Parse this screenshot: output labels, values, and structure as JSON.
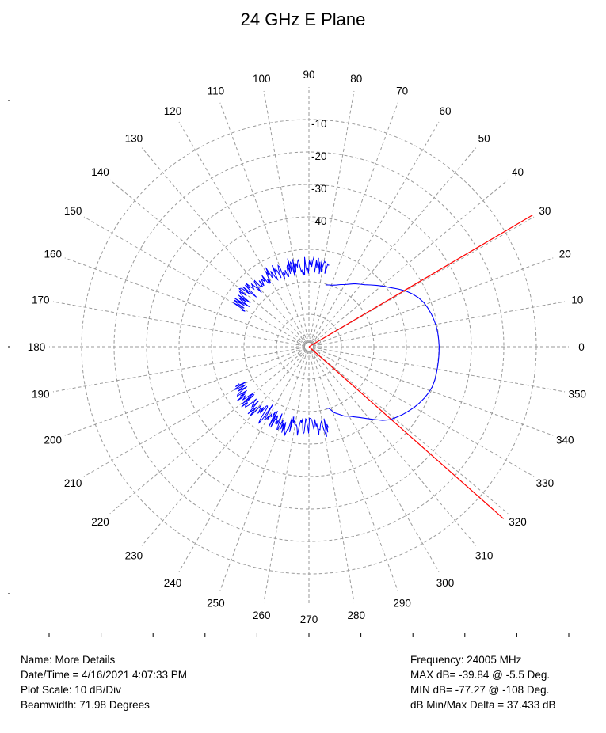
{
  "chart_data": {
    "type": "polar-line",
    "title": "24 GHz E Plane",
    "radial_axis": {
      "unit": "dB",
      "ticks": [
        -10,
        -20,
        -30,
        -40
      ],
      "tick_labels": [
        "-10",
        "-20",
        "-30",
        "-40"
      ],
      "range": [
        -80,
        0
      ],
      "rings": [
        -10,
        -20,
        -30,
        -40,
        -50,
        -60,
        -70
      ]
    },
    "angular_axis": {
      "unit": "deg",
      "ticks": [
        0,
        10,
        20,
        30,
        40,
        50,
        60,
        70,
        80,
        90,
        100,
        110,
        120,
        130,
        140,
        150,
        160,
        170,
        180,
        190,
        200,
        210,
        220,
        230,
        240,
        250,
        260,
        270,
        280,
        290,
        300,
        310,
        320,
        330,
        340,
        350
      ],
      "tick_labels": [
        "0",
        "10",
        "20",
        "30",
        "40",
        "50",
        "60",
        "70",
        "80",
        "90",
        "100",
        "110",
        "120",
        "130",
        "140",
        "150",
        "160",
        "170",
        "180",
        "190",
        "200",
        "210",
        "220",
        "230",
        "240",
        "250",
        "260",
        "270",
        "280",
        "290",
        "300",
        "310",
        "320",
        "330",
        "340",
        "350"
      ]
    },
    "grid": true,
    "series": [
      {
        "color": "#0000ff",
        "angles": [
          -75,
          -72,
          -69,
          -66,
          -63,
          -60,
          -57,
          -54,
          -51,
          -48,
          -45,
          -42,
          -39,
          -36,
          -33,
          -30,
          -27,
          -24,
          -21,
          -18,
          -15,
          -12,
          -9,
          -6,
          -3,
          0,
          3,
          6,
          9,
          12,
          15,
          18,
          21,
          24,
          27,
          30,
          33,
          36,
          39,
          42,
          45,
          48,
          51,
          54,
          57,
          60,
          63,
          66,
          69,
          72,
          75
        ],
        "values": [
          -60.4,
          -60.0,
          -58.2,
          -57.2,
          -56.0,
          -55.3,
          -54.2,
          -53.0,
          -51.5,
          -49.8,
          -47.9,
          -46.4,
          -45.4,
          -44.4,
          -43.5,
          -42.6,
          -41.8,
          -41.1,
          -40.5,
          -40.1,
          -39.9,
          -39.9,
          -39.9,
          -39.9,
          -39.9,
          -39.9,
          -40.0,
          -40.1,
          -40.3,
          -40.6,
          -41.0,
          -41.5,
          -42.1,
          -43.0,
          -44.2,
          -45.6,
          -47.3,
          -49.0,
          -50.4,
          -51.8,
          -53.1,
          -54.3,
          -55.2,
          -56.0,
          -57.0,
          -57.9,
          -58.5,
          -59.2,
          -59.7,
          -60.0,
          -60.3
        ],
        "noisy_sidelobes": [
          {
            "from_deg": 76,
            "to_deg": 152,
            "base_db": -55.0,
            "jitter_db": 3.0
          },
          {
            "from_deg": 208,
            "to_deg": 284,
            "base_db": -55.0,
            "jitter_db": 3.0
          }
        ]
      },
      {
        "color": "#ff0000",
        "angles": [
          30.5,
          -41.5
        ],
        "values": [
          0,
          0
        ],
        "note": "beamwidth markers"
      }
    ]
  },
  "info_left": {
    "name": "Name: More Details",
    "datetime": "Date/Time = 4/16/2021 4:07:33 PM",
    "scale": "Plot Scale: 10 dB/Div",
    "beamwidth": "Beamwidth:  71.98 Degrees"
  },
  "info_right": {
    "frequency": "Frequency: 24005 MHz",
    "max": "MAX dB= -39.84 @ -5.5 Deg.",
    "min": "MIN dB= -77.27 @ -108 Deg.",
    "delta": "dB Min/Max Delta = 37.433 dB"
  }
}
